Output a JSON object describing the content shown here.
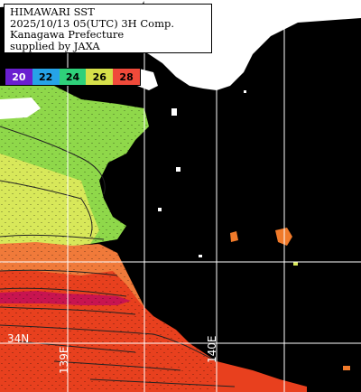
{
  "header": {
    "line1": "HIMAWARI SST",
    "line2": "2025/10/13 05(UTC) 3H Comp.",
    "line3": "Kanagawa Prefecture",
    "line4": "supplied by JAXA"
  },
  "legend": {
    "ticks": [
      {
        "label": "20",
        "color": "#6a1fd0",
        "text_color": "#ffffff"
      },
      {
        "label": "22",
        "color": "#26a3e8",
        "text_color": "#000000"
      },
      {
        "label": "24",
        "color": "#2fd07a",
        "text_color": "#000000"
      },
      {
        "label": "26",
        "color": "#d6e04a",
        "text_color": "#000000"
      },
      {
        "label": "28",
        "color": "#f04a3a",
        "text_color": "#000000"
      }
    ]
  },
  "grid_labels": {
    "lat_label": "34N",
    "lon_left": "139E",
    "lon_right": "140E"
  },
  "colors": {
    "land": "#ffffff",
    "cloud": "#000000",
    "sst_warm": "#e8321e",
    "sst_hot": "#c81450",
    "sst_orange": "#f05a28",
    "sst_yellow": "#d8e85a",
    "sst_green": "#8fd84a",
    "gridline": "#ffffff",
    "contour": "#222222"
  }
}
